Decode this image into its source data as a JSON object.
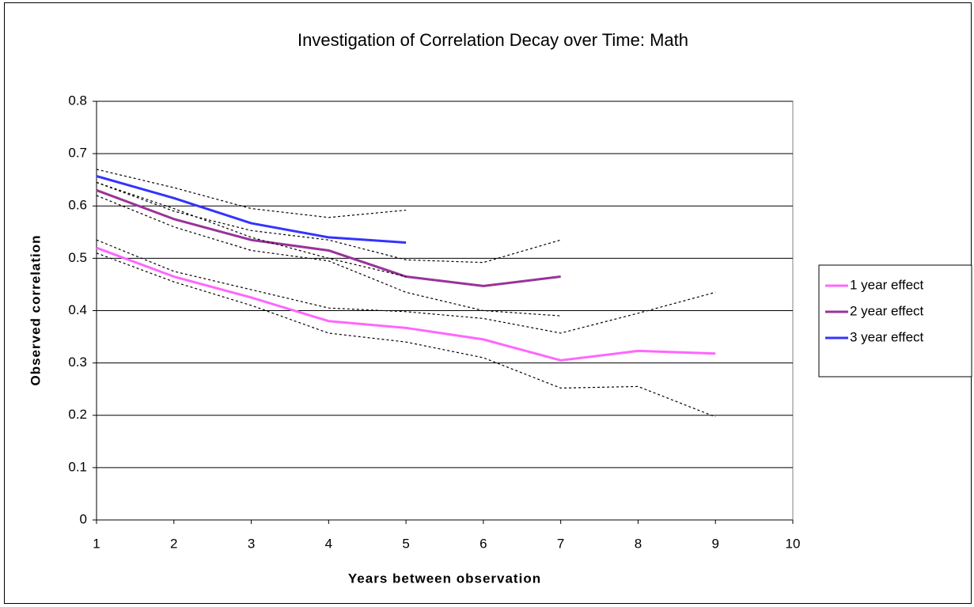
{
  "chart_data": {
    "type": "line",
    "title": "Investigation of Correlation Decay over Time: Math",
    "x_label": "Years between observation",
    "y_label": "Observed correlation",
    "x": [
      1,
      2,
      3,
      4,
      5,
      6,
      7,
      8,
      9
    ],
    "xlim": [
      1,
      10
    ],
    "xticks": [
      1,
      2,
      3,
      4,
      5,
      6,
      7,
      8,
      9,
      10
    ],
    "ylim": [
      0,
      0.8
    ],
    "yticks": [
      0,
      0.1,
      0.2,
      0.3,
      0.4,
      0.5,
      0.6,
      0.7,
      0.8
    ],
    "grid": true,
    "legend": "right",
    "series": [
      {
        "name": "1 year effect",
        "color": "#ff66ff",
        "values": [
          0.52,
          0.465,
          0.425,
          0.38,
          0.367,
          0.345,
          0.305,
          0.323,
          0.318
        ]
      },
      {
        "name": "2 year effect",
        "color": "#993399",
        "values": [
          0.63,
          0.575,
          0.535,
          0.515,
          0.465,
          0.447,
          0.465,
          null,
          null
        ]
      },
      {
        "name": "3 year effect",
        "color": "#3333ff",
        "values": [
          0.657,
          0.615,
          0.567,
          0.54,
          0.53,
          null,
          null,
          null,
          null
        ]
      },
      {
        "color": "#000000",
        "dashed": true,
        "values": [
          0.535,
          0.475,
          0.44,
          0.405,
          0.398,
          0.385,
          0.357,
          0.395,
          0.435
        ]
      },
      {
        "color": "#000000",
        "dashed": true,
        "values": [
          0.51,
          0.455,
          0.41,
          0.357,
          0.34,
          0.31,
          0.252,
          0.255,
          0.197
        ]
      },
      {
        "color": "#000000",
        "dashed": true,
        "values": [
          0.645,
          0.59,
          0.553,
          0.535,
          0.497,
          0.492,
          0.535,
          null,
          null
        ]
      },
      {
        "color": "#000000",
        "dashed": true,
        "values": [
          0.62,
          0.56,
          0.515,
          0.495,
          0.435,
          0.4,
          0.39,
          null,
          null
        ]
      },
      {
        "color": "#000000",
        "dashed": true,
        "values": [
          0.67,
          0.635,
          0.595,
          0.578,
          0.592,
          null,
          null,
          null,
          null
        ]
      },
      {
        "color": "#000000",
        "dashed": true,
        "values": [
          0.645,
          0.595,
          0.54,
          0.5,
          0.465,
          null,
          null,
          null,
          null
        ]
      }
    ]
  }
}
